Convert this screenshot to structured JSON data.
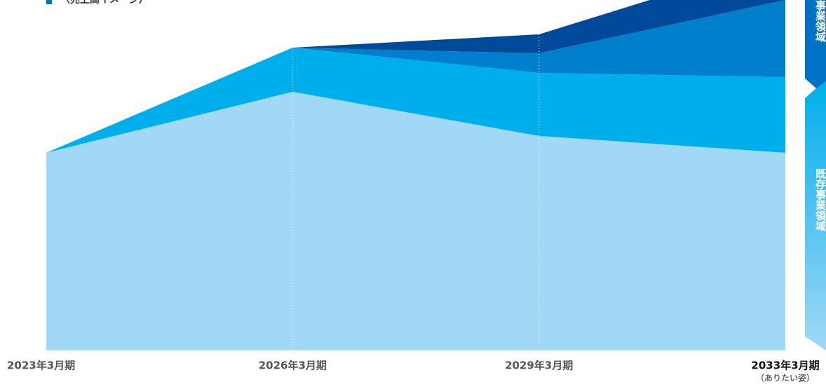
{
  "chart_data": {
    "type": "area",
    "subtitle": "（売上高イメージ）",
    "categories": [
      "2023年3月期",
      "2026年3月期",
      "2029年3月期",
      "2033年3月期"
    ],
    "category_note": "（ありたい姿）",
    "ylim": [
      0,
      500
    ],
    "series": [
      {
        "color": "#a0d8f5",
        "values": [
          282,
          369,
          306,
          282
        ]
      },
      {
        "color": "#00aeeb",
        "values": [
          0,
          63,
          90,
          108
        ]
      },
      {
        "color": "#0080cc",
        "values": [
          0,
          0,
          28,
          110
        ]
      },
      {
        "color": "#004a99",
        "values": [
          0,
          0,
          27,
          60
        ]
      }
    ],
    "annotations": [
      {
        "text": "新規事業領域",
        "color": "#0072c6"
      },
      {
        "text": "既存事業領域",
        "color": "#00aeeb"
      }
    ]
  }
}
